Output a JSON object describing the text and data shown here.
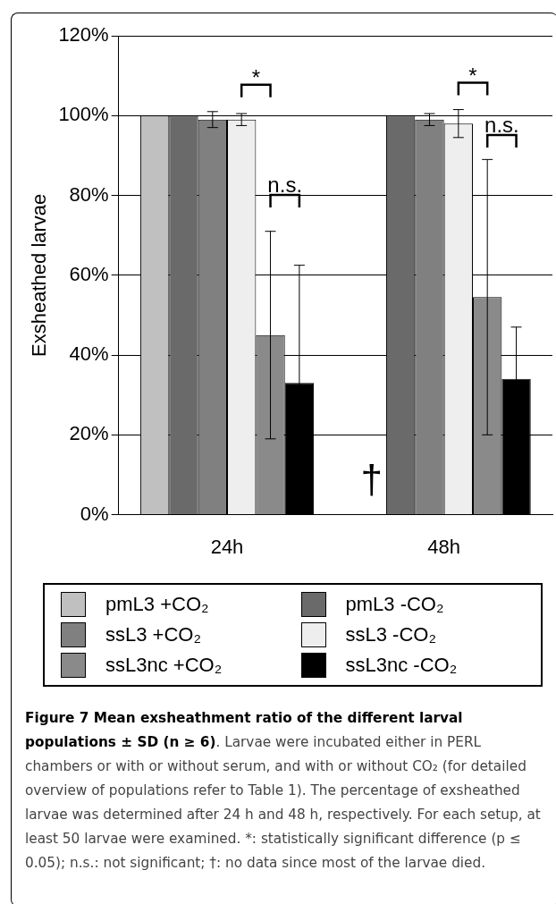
{
  "chart_data": {
    "type": "bar",
    "title": "Figure 7 Mean exsheathment ratio of the different larval populations ± SD (n ≥ 6)",
    "subtitle": ". Larvae were incubated either in PERL chambers or with or without serum, and with or without CO₂ (for detailed overview of populations refer to Table 1). The percentage of exsheathed larvae was determined after 24 h and 48 h, respectively. For each setup, at least 50 larvae were examined. *: statistically significant difference (p ≤ 0.05); n.s.: not significant; †: no data since most of the larvae died.",
    "ylabel": "Exsheathed larvae",
    "categories": [
      "24h",
      "48h"
    ],
    "series": [
      {
        "name": "pmL3 +CO₂",
        "color": "#c0c0c0",
        "values": [
          100,
          null
        ]
      },
      {
        "name": "pmL3 -CO₂",
        "color": "#6a6a6a",
        "values": [
          100,
          100
        ]
      },
      {
        "name": "ssL3 +CO₂",
        "color": "#808080",
        "values": [
          99,
          99
        ],
        "errors": [
          2,
          1.5
        ]
      },
      {
        "name": "ssL3 -CO₂",
        "color": "#eeeeee",
        "values": [
          99,
          98
        ],
        "errors": [
          1.5,
          3.5
        ]
      },
      {
        "name": "ssL3nc +CO₂",
        "color": "#8a8a8a",
        "values": [
          45,
          54.5
        ],
        "errors": [
          26,
          34.5
        ]
      },
      {
        "name": "ssL3nc -CO₂",
        "color": "#000000",
        "values": [
          33,
          34
        ],
        "errors": [
          29.5,
          13
        ]
      }
    ],
    "annotations": [
      "*",
      {
        "text": "n.s.",
        "x": "24h",
        "y": 81
      },
      "*",
      {
        "text": "n.s.",
        "x": "48h",
        "y": 96
      },
      {
        "text": "†",
        "x": "48h",
        "y": 5
      }
    ],
    "ylim": [
      0,
      120
    ],
    "yticks": [
      {
        "value": 0,
        "label": "0%"
      },
      {
        "value": 20,
        "label": "20%"
      },
      {
        "value": 40,
        "label": "40%"
      },
      {
        "value": 60,
        "label": "60%"
      },
      {
        "value": 80,
        "label": "80%"
      },
      {
        "value": 100,
        "label": "100%"
      },
      {
        "value": 120,
        "label": "120%"
      }
    ],
    "grid": "y",
    "legend": "bottom"
  }
}
